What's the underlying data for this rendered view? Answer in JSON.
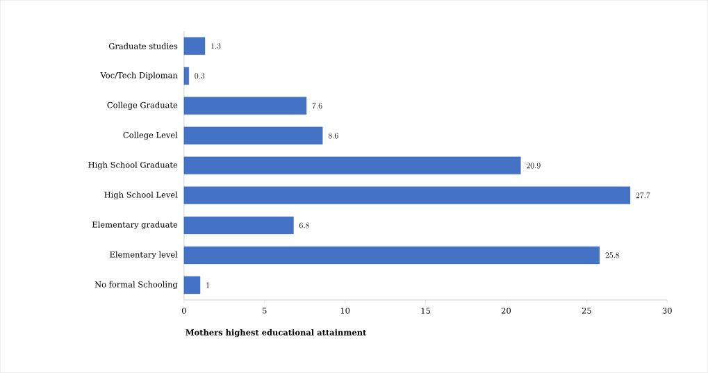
{
  "chart_data": {
    "type": "bar",
    "orientation": "horizontal",
    "xlabel": "Mothers highest educational attainment",
    "categories": [
      "Graduate studies",
      "Voc/Tech Diploman",
      "College Graduate",
      "College Level",
      "High School Graduate",
      "High School Level",
      "Elementary graduate",
      "Elementary level",
      "No formal Schooling"
    ],
    "values": [
      1.3,
      0.3,
      7.6,
      8.6,
      20.9,
      27.7,
      6.8,
      25.8,
      1
    ],
    "color": "#4472c4",
    "xlim": [
      0,
      30
    ],
    "xticks": [
      0,
      5,
      10,
      15,
      20,
      25,
      30
    ],
    "data_labels": true
  }
}
